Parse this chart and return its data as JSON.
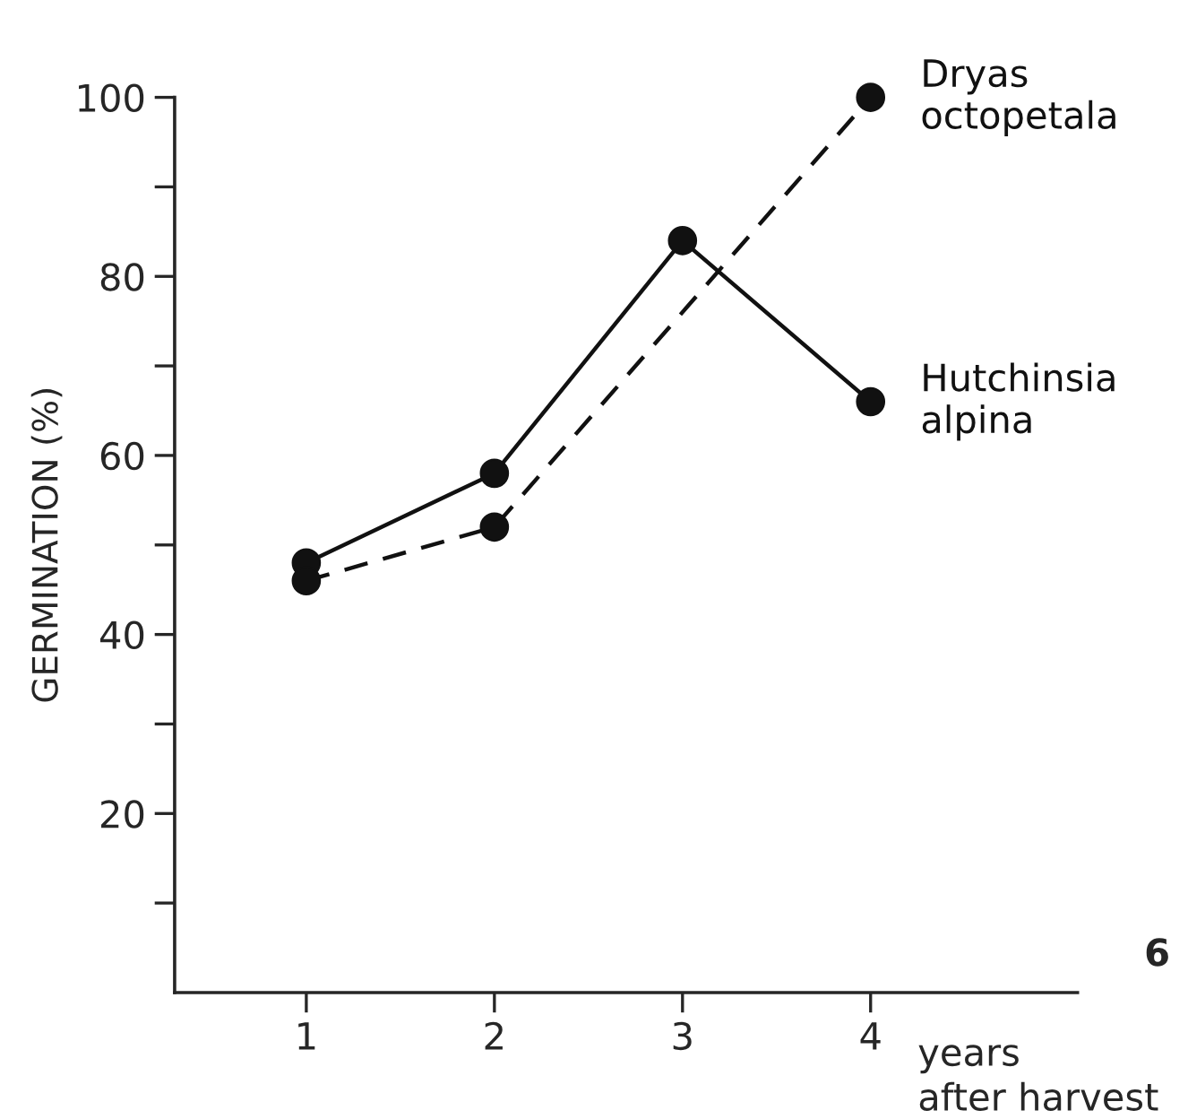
{
  "chart_data": {
    "type": "line",
    "ylabel": "GERMINATION (%)",
    "xlabel": "years\nafter harvest",
    "xlim": [
      0.3,
      5.1
    ],
    "xticks": [
      1,
      2,
      3,
      4
    ],
    "ylim": [
      0,
      100
    ],
    "yticks": [
      {
        "value": 10,
        "label": null
      },
      20,
      {
        "value": 30,
        "label": null
      },
      40,
      {
        "value": 50,
        "label": null
      },
      60,
      {
        "value": 70,
        "label": null
      },
      80,
      {
        "value": 90,
        "label": null
      },
      100
    ],
    "marker": "circle",
    "grid": false,
    "legend": false,
    "series": [
      {
        "name": "Hutchinsia\nalpina",
        "color": "#111111",
        "line_style": "solid",
        "x": [
          1,
          2,
          3,
          4
        ],
        "values": [
          48,
          58,
          84,
          66
        ]
      },
      {
        "name": "Dryas\noctopetala",
        "color": "#111111",
        "line_style": "dashed",
        "x": [
          1,
          2,
          4
        ],
        "values": [
          46,
          52,
          100
        ]
      }
    ],
    "annotations": [
      "6"
    ]
  }
}
